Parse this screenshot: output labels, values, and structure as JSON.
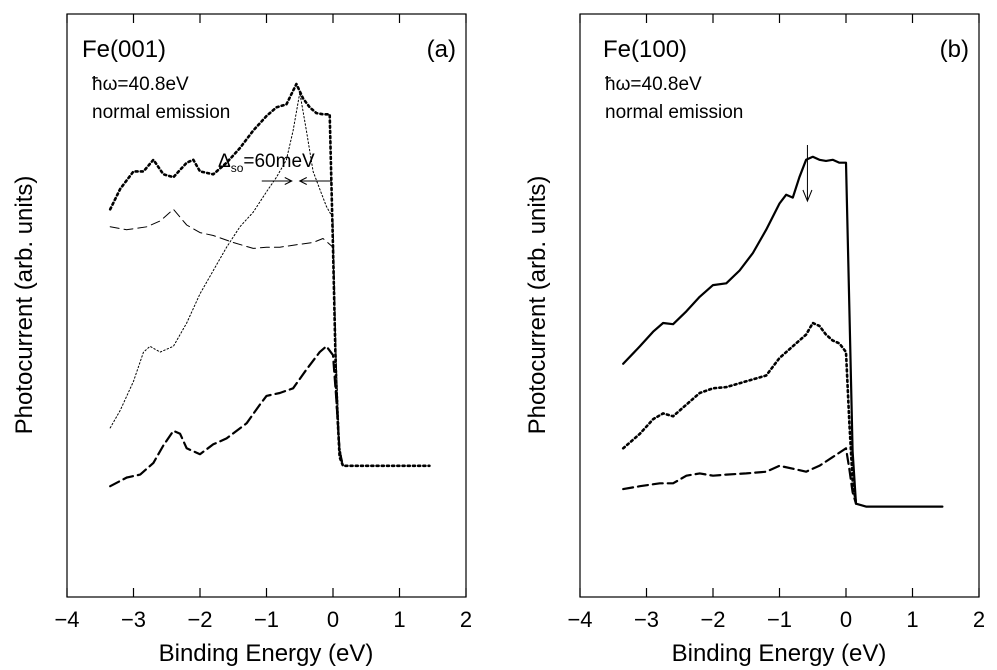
{
  "chart_data": [
    {
      "type": "line",
      "panel_tag": "(a)",
      "title": "Fe(001)",
      "info_lines": [
        "ħω=40.8eV",
        "normal emission"
      ],
      "xlabel": "Binding Energy (eV)",
      "ylabel": "Photocurrent (arb. units)",
      "xlim": [
        -4,
        2
      ],
      "ylim": [
        0,
        1
      ],
      "xticks": [
        -4,
        -3,
        -2,
        -1,
        0,
        1,
        2
      ],
      "xtick_labels": [
        "−4",
        "−3",
        "−2",
        "−1",
        "0",
        "1",
        "2"
      ],
      "grid": false,
      "annotation": {
        "text_main": "Δ",
        "text_sub": "so",
        "text_rest": "=60meV",
        "x_left": -0.62,
        "x_right": -0.5
      },
      "series": [
        {
          "style": "thick-dotted",
          "x": [
            -3.35,
            -3.2,
            -3.0,
            -2.85,
            -2.7,
            -2.55,
            -2.4,
            -2.2,
            -2.1,
            -2.0,
            -1.8,
            -1.6,
            -1.4,
            -1.2,
            -1.0,
            -0.85,
            -0.7,
            -0.55,
            -0.45,
            -0.35,
            -0.25,
            -0.15,
            -0.05,
            0.0,
            0.05,
            0.1,
            0.15,
            0.3,
            0.6,
            0.9,
            1.2,
            1.45
          ],
          "y": [
            0.665,
            0.7,
            0.73,
            0.73,
            0.75,
            0.725,
            0.72,
            0.745,
            0.75,
            0.73,
            0.725,
            0.745,
            0.77,
            0.8,
            0.825,
            0.84,
            0.845,
            0.88,
            0.855,
            0.84,
            0.83,
            0.828,
            0.828,
            0.6,
            0.35,
            0.24,
            0.225,
            0.225,
            0.225,
            0.225,
            0.225,
            0.225
          ]
        },
        {
          "style": "thin-dashed",
          "x": [
            -3.35,
            -3.1,
            -2.8,
            -2.6,
            -2.4,
            -2.2,
            -2.0,
            -1.8,
            -1.5,
            -1.2,
            -1.0,
            -0.8,
            -0.5,
            -0.3,
            -0.15,
            0.0,
            0.05,
            0.1,
            0.15
          ],
          "y": [
            0.635,
            0.63,
            0.635,
            0.645,
            0.665,
            0.638,
            0.625,
            0.62,
            0.608,
            0.598,
            0.6,
            0.6,
            0.605,
            0.608,
            0.615,
            0.6,
            0.4,
            0.25,
            0.225
          ]
        },
        {
          "style": "thin-dotted",
          "x": [
            -3.35,
            -3.2,
            -3.0,
            -2.85,
            -2.75,
            -2.6,
            -2.4,
            -2.2,
            -2.0,
            -1.8,
            -1.6,
            -1.4,
            -1.2,
            -1.0,
            -0.85,
            -0.7,
            -0.6,
            -0.5,
            -0.4,
            -0.3,
            -0.2,
            -0.1,
            0.0,
            0.05,
            0.1,
            0.15
          ],
          "y": [
            0.29,
            0.32,
            0.37,
            0.42,
            0.43,
            0.42,
            0.43,
            0.47,
            0.52,
            0.56,
            0.6,
            0.635,
            0.66,
            0.695,
            0.72,
            0.75,
            0.8,
            0.865,
            0.8,
            0.73,
            0.7,
            0.67,
            0.65,
            0.4,
            0.26,
            0.225
          ]
        },
        {
          "style": "thick-dashed",
          "x": [
            -3.35,
            -3.1,
            -2.9,
            -2.7,
            -2.55,
            -2.4,
            -2.3,
            -2.2,
            -2.0,
            -1.8,
            -1.6,
            -1.3,
            -1.1,
            -1.0,
            -0.8,
            -0.6,
            -0.4,
            -0.2,
            -0.1,
            0.0,
            0.05,
            0.1,
            0.15
          ],
          "y": [
            0.19,
            0.205,
            0.21,
            0.23,
            0.26,
            0.285,
            0.28,
            0.255,
            0.245,
            0.262,
            0.272,
            0.298,
            0.33,
            0.345,
            0.35,
            0.358,
            0.39,
            0.42,
            0.43,
            0.415,
            0.34,
            0.25,
            0.225
          ]
        }
      ]
    },
    {
      "type": "line",
      "panel_tag": "(b)",
      "title": "Fe(100)",
      "info_lines": [
        "ħω=40.8eV",
        "normal emission"
      ],
      "xlabel": "Binding Energy (eV)",
      "ylabel": "Photocurrent (arb. units)",
      "xlim": [
        -4,
        2
      ],
      "ylim": [
        0,
        1
      ],
      "xticks": [
        -4,
        -3,
        -2,
        -1,
        0,
        1,
        2
      ],
      "xtick_labels": [
        "−4",
        "−3",
        "−2",
        "−1",
        "0",
        "1",
        "2"
      ],
      "grid": false,
      "arrow": {
        "x": -0.58
      },
      "series": [
        {
          "style": "solid",
          "x": [
            -3.35,
            -3.1,
            -2.9,
            -2.75,
            -2.6,
            -2.4,
            -2.2,
            -2.0,
            -1.8,
            -1.6,
            -1.4,
            -1.2,
            -1.0,
            -0.9,
            -0.8,
            -0.7,
            -0.6,
            -0.5,
            -0.4,
            -0.3,
            -0.2,
            -0.1,
            0.0,
            0.05,
            0.1,
            0.15,
            0.3,
            0.6,
            0.9,
            1.2,
            1.45
          ],
          "y": [
            0.4,
            0.43,
            0.455,
            0.47,
            0.468,
            0.49,
            0.515,
            0.535,
            0.538,
            0.56,
            0.59,
            0.63,
            0.675,
            0.69,
            0.685,
            0.72,
            0.75,
            0.755,
            0.75,
            0.748,
            0.75,
            0.745,
            0.745,
            0.5,
            0.25,
            0.16,
            0.155,
            0.155,
            0.155,
            0.155,
            0.155
          ]
        },
        {
          "style": "thick-dotted",
          "x": [
            -3.35,
            -3.1,
            -2.9,
            -2.75,
            -2.6,
            -2.4,
            -2.2,
            -2.0,
            -1.8,
            -1.5,
            -1.2,
            -1.0,
            -0.8,
            -0.6,
            -0.5,
            -0.4,
            -0.3,
            -0.2,
            -0.1,
            0.0,
            0.05,
            0.1,
            0.15
          ],
          "y": [
            0.255,
            0.28,
            0.305,
            0.315,
            0.31,
            0.33,
            0.35,
            0.358,
            0.36,
            0.37,
            0.38,
            0.41,
            0.43,
            0.45,
            0.47,
            0.465,
            0.45,
            0.44,
            0.435,
            0.42,
            0.3,
            0.2,
            0.16
          ]
        },
        {
          "style": "thick-dashed",
          "x": [
            -3.35,
            -3.1,
            -2.8,
            -2.6,
            -2.4,
            -2.2,
            -2.0,
            -1.8,
            -1.5,
            -1.2,
            -1.0,
            -0.8,
            -0.6,
            -0.4,
            -0.2,
            0.0,
            0.05,
            0.1,
            0.15
          ],
          "y": [
            0.185,
            0.19,
            0.195,
            0.195,
            0.208,
            0.212,
            0.208,
            0.21,
            0.212,
            0.215,
            0.225,
            0.22,
            0.215,
            0.225,
            0.24,
            0.255,
            0.22,
            0.18,
            0.16
          ]
        }
      ]
    }
  ]
}
